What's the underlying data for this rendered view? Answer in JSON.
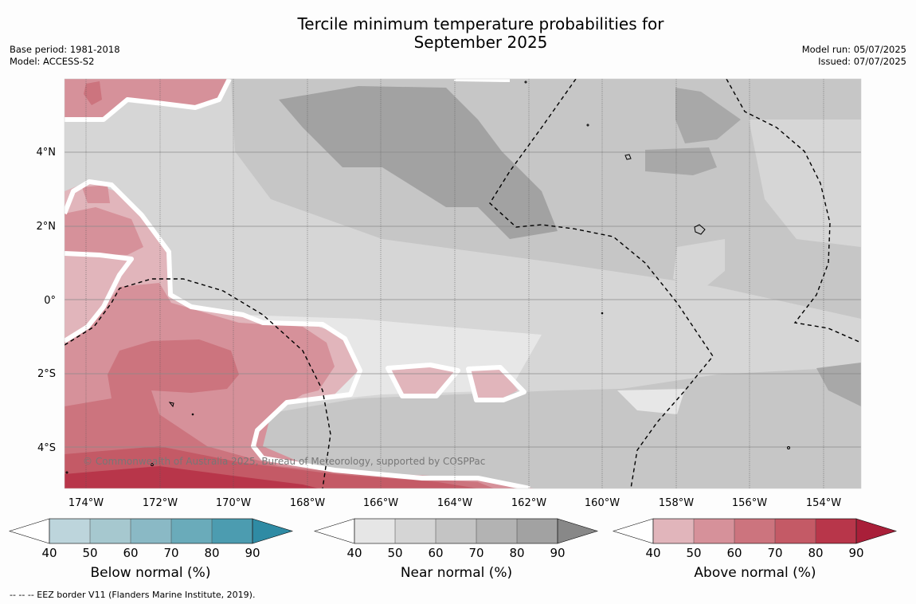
{
  "title": "Tercile minimum temperature probabilities for\nSeptember 2025",
  "title_lines": [
    "Tercile minimum temperature probabilities for",
    "September 2025"
  ],
  "base_period": "Base period: 1981-2018",
  "model": "Model: ACCESS-S2",
  "model_run": "Model run: 05/07/2025",
  "issued": "Issued: 07/07/2025",
  "copyright": "© Commonwealth of Australia 2025, Bureau of Meteorology, supported by COSPPac",
  "footer": "--  --  -- EEZ border V11 (Flanders Marine Institute, 2019).",
  "lat_labels": [
    "4°N",
    "2°N",
    "0°",
    "2°S",
    "4°S"
  ],
  "lon_labels": [
    "174°W",
    "172°W",
    "170°W",
    "168°W",
    "166°W",
    "164°W",
    "162°W",
    "160°W",
    "158°W",
    "156°W",
    "154°W"
  ],
  "colorbars": [
    {
      "title": "Below normal (%)",
      "ticks": [
        "40",
        "50",
        "60",
        "70",
        "80",
        "90"
      ],
      "colors": [
        "#ffffff",
        "#bdd5dc",
        "#a6c8cf",
        "#8ab9c5",
        "#6aabba",
        "#4c9cb0",
        "#2f8ba4"
      ]
    },
    {
      "title": "Near normal (%)",
      "ticks": [
        "40",
        "50",
        "60",
        "70",
        "80",
        "90"
      ],
      "colors": [
        "#ffffff",
        "#e6e6e6",
        "#d5d5d5",
        "#c4c4c4",
        "#b3b3b3",
        "#a2a2a2",
        "#888888"
      ]
    },
    {
      "title": "Above normal (%)",
      "ticks": [
        "40",
        "50",
        "60",
        "70",
        "80",
        "90"
      ],
      "colors": [
        "#ffffff",
        "#e1b5bb",
        "#d6919a",
        "#cc747e",
        "#c45a66",
        "#b8364a",
        "#a91f39"
      ]
    }
  ],
  "palette": {
    "near40": "#e7e7e7",
    "near50": "#d6d6d6",
    "near60": "#c6c6c6",
    "near70": "#b3b3b3",
    "near80": "#a2a2a2",
    "above40": "#e1b5bb",
    "above50": "#d6919a",
    "above60": "#cc747e",
    "above70": "#c45a66",
    "above80": "#b8364a"
  }
}
